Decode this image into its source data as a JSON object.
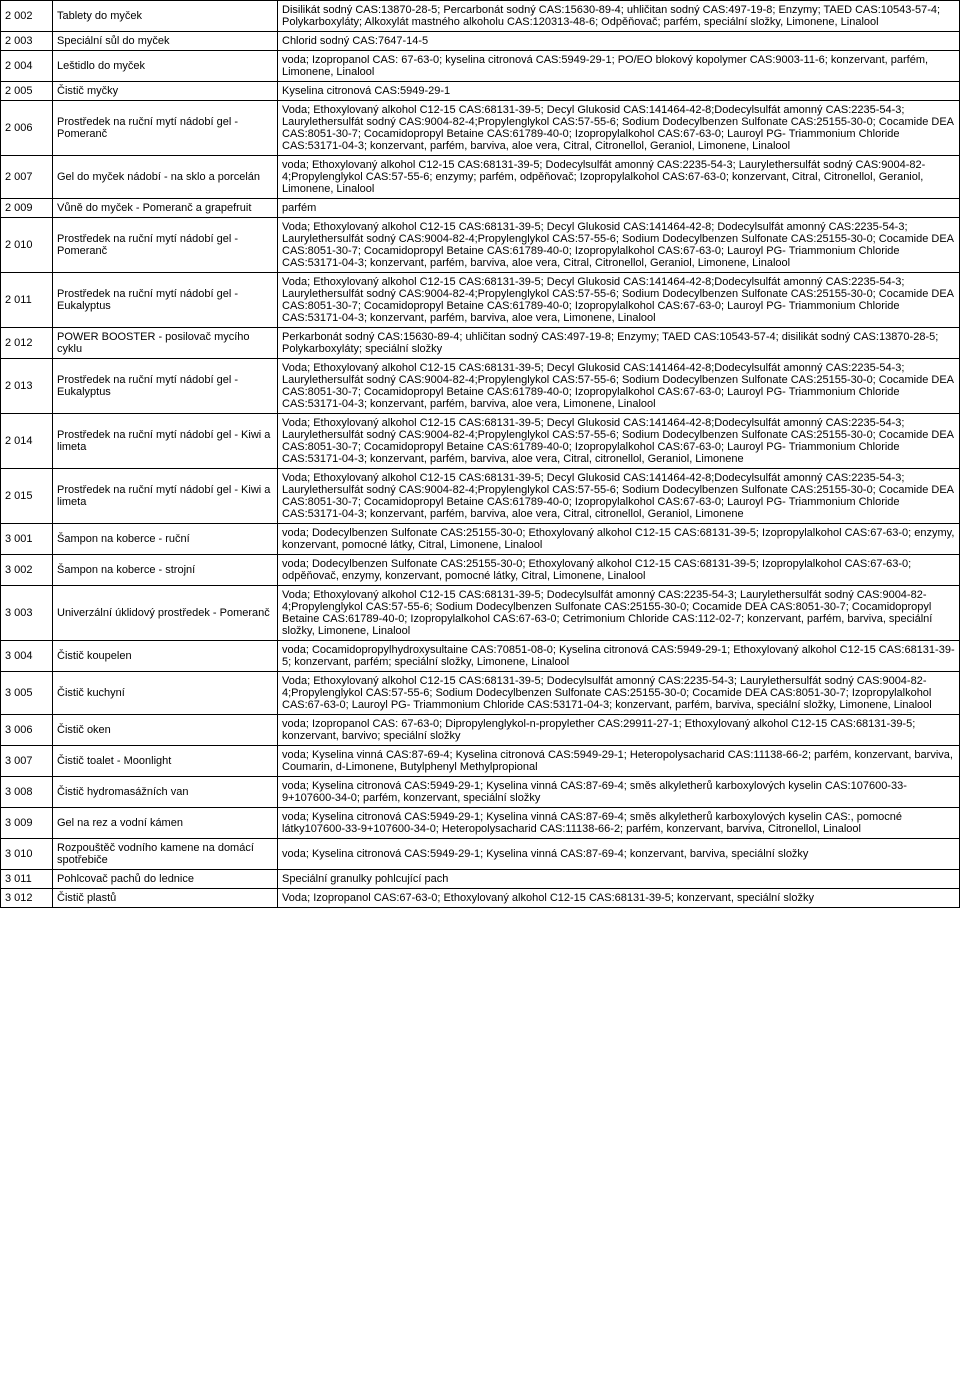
{
  "rows": [
    {
      "code": "2 002",
      "name": "Tablety do myček",
      "desc": "Disilikát sodný CAS:13870-28-5; Percarbonát sodný CAS:15630-89-4; uhličitan sodný CAS:497-19-8; Enzymy; TAED CAS:10543-57-4; Polykarboxyláty; Alkoxylát mastného alkoholu CAS:120313-48-6; Odpěňovač; parfém, speciální složky, Limonene, Linalool"
    },
    {
      "code": "2 003",
      "name": "Speciální sůl do myček",
      "desc": "Chlorid sodný CAS:7647-14-5"
    },
    {
      "code": "2 004",
      "name": "Leštidlo do myček",
      "desc": "voda; Izopropanol CAS: 67-63-0; kyselina citronová CAS:5949-29-1; PO/EO blokový kopolymer CAS:9003-11-6; konzervant, parfém, Limonene, Linalool"
    },
    {
      "code": "2 005",
      "name": "Čistič myčky",
      "desc": " Kyselina citronová CAS:5949-29-1"
    },
    {
      "code": "2 006",
      "name": "Prostředek na ruční mytí nádobí gel - Pomeranč",
      "desc": "Voda; Ethoxylovaný alkohol C12-15 CAS:68131-39-5; Decyl Glukosid CAS:141464-42-8;Dodecylsulfát amonný CAS:2235-54-3; Laurylethersulfát sodný CAS:9004-82-4;Propylenglykol CAS:57-55-6; Sodium Dodecylbenzen Sulfonate CAS:25155-30-0; Cocamide DEA CAS:8051-30-7; Cocamidopropyl Betaine CAS:61789-40-0;  Izopropylalkohol CAS:67-63-0; Lauroyl PG- Triammonium Chloride CAS:53171-04-3; konzervant, parfém, barviva, aloe vera, Citral, Citronellol, Geraniol, Limonene, Linalool"
    },
    {
      "code": "2 007",
      "name": "Gel do myček nádobí - na sklo a porcelán",
      "desc": "voda; Ethoxylovaný alkohol C12-15 CAS:68131-39-5; Dodecylsulfát amonný CAS:2235-54-3; Laurylethersulfát sodný CAS:9004-82-4;Propylenglykol CAS:57-55-6; enzymy; parfém, odpěňovač; Izopropylalkohol CAS:67-63-0; konzervant, Citral, Citronellol, Geraniol, Limonene, Linalool"
    },
    {
      "code": "2 009",
      "name": "Vůně do myček - Pomeranč a grapefruit",
      "desc": "parfém"
    },
    {
      "code": "2 010",
      "name": "Prostředek na ruční mytí nádobí gel - Pomeranč",
      "desc": "Voda; Ethoxylovaný alkohol C12-15 CAS:68131-39-5; Decyl Glukosid CAS:141464-42-8; Dodecylsulfát amonný CAS:2235-54-3; Laurylethersulfát sodný CAS:9004-82-4;Propylenglykol CAS:57-55-6; Sodium Dodecylbenzen Sulfonate CAS:25155-30-0; Cocamide DEA CAS:8051-30-7; Cocamidopropyl Betaine CAS:61789-40-0;  Izopropylalkohol CAS:67-63-0; Lauroyl PG- Triammonium Chloride CAS:53171-04-3; konzervant, parfém, barviva, aloe vera, Citral, Citronellol, Geraniol, Limonene, Linalool"
    },
    {
      "code": "2 011",
      "name": "Prostředek na ruční mytí nádobí gel - Eukalyptus",
      "desc": "Voda; Ethoxylovaný alkohol C12-15 CAS:68131-39-5; Decyl Glukosid CAS:141464-42-8;Dodecylsulfát amonný CAS:2235-54-3; Laurylethersulfát sodný CAS:9004-82-4;Propylenglykol CAS:57-55-6; Sodium Dodecylbenzen Sulfonate CAS:25155-30-0; Cocamide DEA CAS:8051-30-7; Cocamidopropyl Betaine CAS:61789-40-0;  Izopropylalkohol CAS:67-63-0; Lauroyl PG- Triammonium Chloride CAS:53171-04-3; konzervant, parfém, barviva, aloe vera, Limonene, Linalool"
    },
    {
      "code": "2 012",
      "name": "POWER BOOSTER  - posilovač mycího cyklu",
      "desc": "Perkarbonát sodný CAS:15630-89-4; uhličitan sodný CAS:497-19-8; Enzymy; TAED CAS:10543-57-4; disilikát sodný CAS:13870-28-5; Polykarboxyláty; speciální složky"
    },
    {
      "code": "2 013",
      "name": "Prostředek na ruční mytí nádobí gel - Eukalyptus",
      "desc": "Voda; Ethoxylovaný alkohol C12-15 CAS:68131-39-5; Decyl Glukosid CAS:141464-42-8;Dodecylsulfát amonný CAS:2235-54-3; Laurylethersulfát sodný CAS:9004-82-4;Propylenglykol CAS:57-55-6; Sodium Dodecylbenzen Sulfonate CAS:25155-30-0; Cocamide DEA CAS:8051-30-7; Cocamidopropyl Betaine CAS:61789-40-0;  Izopropylalkohol CAS:67-63-0; Lauroyl PG- Triammonium Chloride CAS:53171-04-3; konzervant, parfém, barviva, aloe vera, Limonene, Linalool"
    },
    {
      "code": "2 014",
      "name": "Prostředek na ruční mytí nádobí gel - Kiwi a limeta",
      "desc": "Voda; Ethoxylovaný alkohol C12-15 CAS:68131-39-5; Decyl Glukosid CAS:141464-42-8;Dodecylsulfát amonný CAS:2235-54-3; Laurylethersulfát sodný CAS:9004-82-4;Propylenglykol CAS:57-55-6; Sodium Dodecylbenzen Sulfonate CAS:25155-30-0; Cocamide DEA CAS:8051-30-7; Cocamidopropyl Betaine CAS:61789-40-0;  Izopropylalkohol CAS:67-63-0; Lauroyl PG- Triammonium Chloride CAS:53171-04-3; konzervant, parfém, barviva, aloe vera, Citral, citronellol, Geraniol, Limonene"
    },
    {
      "code": "2 015",
      "name": "Prostředek na ruční mytí nádobí gel -  Kiwi a limeta",
      "desc": "Voda; Ethoxylovaný alkohol C12-15 CAS:68131-39-5; Decyl Glukosid CAS:141464-42-8;Dodecylsulfát amonný CAS:2235-54-3; Laurylethersulfát sodný CAS:9004-82-4;Propylenglykol CAS:57-55-6; Sodium Dodecylbenzen Sulfonate CAS:25155-30-0; Cocamide DEA CAS:8051-30-7; Cocamidopropyl Betaine CAS:61789-40-0;  Izopropylalkohol CAS:67-63-0; Lauroyl PG- Triammonium Chloride CAS:53171-04-3; konzervant, parfém, barviva, aloe vera, Citral, citronellol, Geraniol, Limonene"
    },
    {
      "code": "3 001",
      "name": "Šampon na koberce - ruční",
      "desc": "voda; Dodecylbenzen Sulfonate CAS:25155-30-0;  Ethoxylovaný alkohol C12-15 CAS:68131-39-5; Izopropylalkohol CAS:67-63-0; enzymy, konzervant, pomocné látky, Citral, Limonene, Linalool"
    },
    {
      "code": "3 002",
      "name": "Šampon na koberce - strojní",
      "desc": "voda; Dodecylbenzen Sulfonate CAS:25155-30-0;  Ethoxylovaný alkohol C12-15 CAS:68131-39-5; Izopropylalkohol CAS:67-63-0; odpěňovač, enzymy, konzervant, pomocné látky, Citral, Limonene, Linalool"
    },
    {
      "code": "3 003",
      "name": "Univerzální úklidový prostředek - Pomeranč",
      "desc": "Voda; Ethoxylovaný alkohol C12-15 CAS:68131-39-5; Dodecylsulfát amonný CAS:2235-54-3; Laurylethersulfát sodný CAS:9004-82-4;Propylenglykol CAS:57-55-6; Sodium Dodecylbenzen Sulfonate CAS:25155-30-0; Cocamide DEA CAS:8051-30-7; Cocamidopropyl Betaine CAS:61789-40-0; Izopropylalkohol CAS:67-63-0; Cetrimonium Chloride CAS:112-02-7; konzervant, parfém, barviva, speciální složky, Limonene, Linalool"
    },
    {
      "code": "3 004",
      "name": "Čistič koupelen",
      "desc": "voda; Cocamidopropylhydroxysultaine CAS:70851-08-0;  Kyselina citronová CAS:5949-29-1;  Ethoxylovaný alkohol C12-15 CAS:68131-39-5; konzervant, parfém; speciální složky, Limonene, Linalool"
    },
    {
      "code": "3 005",
      "name": "Čistič kuchyní",
      "desc": "Voda; Ethoxylovaný alkohol C12-15 CAS:68131-39-5; Dodecylsulfát amonný CAS:2235-54-3; Laurylethersulfát sodný CAS:9004-82-4;Propylenglykol CAS:57-55-6; Sodium Dodecylbenzen Sulfonate CAS:25155-30-0; Cocamide DEA CAS:8051-30-7; Izopropylalkohol CAS:67-63-0; Lauroyl PG- Triammonium Chloride CAS:53171-04-3; konzervant, parfém, barviva, speciální složky, Limonene, Linalool"
    },
    {
      "code": "3 006",
      "name": "Čistič oken",
      "desc": "voda; Izopropanol CAS: 67-63-0; Dipropylenglykol-n-propylether CAS:29911-27-1; Ethoxylovaný alkohol C12-15 CAS:68131-39-5; konzervant, barvivo; speciální složky"
    },
    {
      "code": "3 007",
      "name": "Čistič toalet - Moonlight",
      "desc": "voda; Kyselina vinná CAS:87-69-4; Kyselina citronová CAS:5949-29-1;  Heteropolysacharid CAS:11138-66-2; parfém, konzervant, barviva, Coumarin, d-Limonene, Butylphenyl Methylpropional"
    },
    {
      "code": "3 008",
      "name": "Čistič hydromasážních van",
      "desc": "voda;  Kyselina citronová CAS:5949-29-1; Kyselina vinná CAS:87-69-4; směs alkyletherů karboxylových kyselin CAS:107600-33-9+107600-34-0; parfém, konzervant, speciální složky"
    },
    {
      "code": "3 009",
      "name": "Gel na  rez a vodní kámen",
      "desc": "voda;  Kyselina citronová CAS:5949-29-1; Kyselina vinná CAS:87-69-4; směs alkyletherů karboxylových kyselin CAS:, pomocné látky107600-33-9+107600-34-0; Heteropolysacharid CAS:11138-66-2; parfém, konzervant, barviva, Citronellol, Linalool"
    },
    {
      "code": "3 010",
      "name": "Rozpouštěč vodního kamene na domácí  spotřebiče",
      "desc": "voda;  Kyselina citronová CAS:5949-29-1; Kyselina vinná CAS:87-69-4; konzervant, barviva, speciální složky"
    },
    {
      "code": "3 011",
      "name": "Pohlcovač pachů do lednice",
      "desc": "Speciální granulky pohlcující pach"
    },
    {
      "code": "3 012",
      "name": "Čistič plastů",
      "desc": "Voda; Izopropanol CAS:67-63-0; Ethoxylovaný alkohol C12-15 CAS:68131-39-5; konzervant, speciální složky"
    }
  ]
}
